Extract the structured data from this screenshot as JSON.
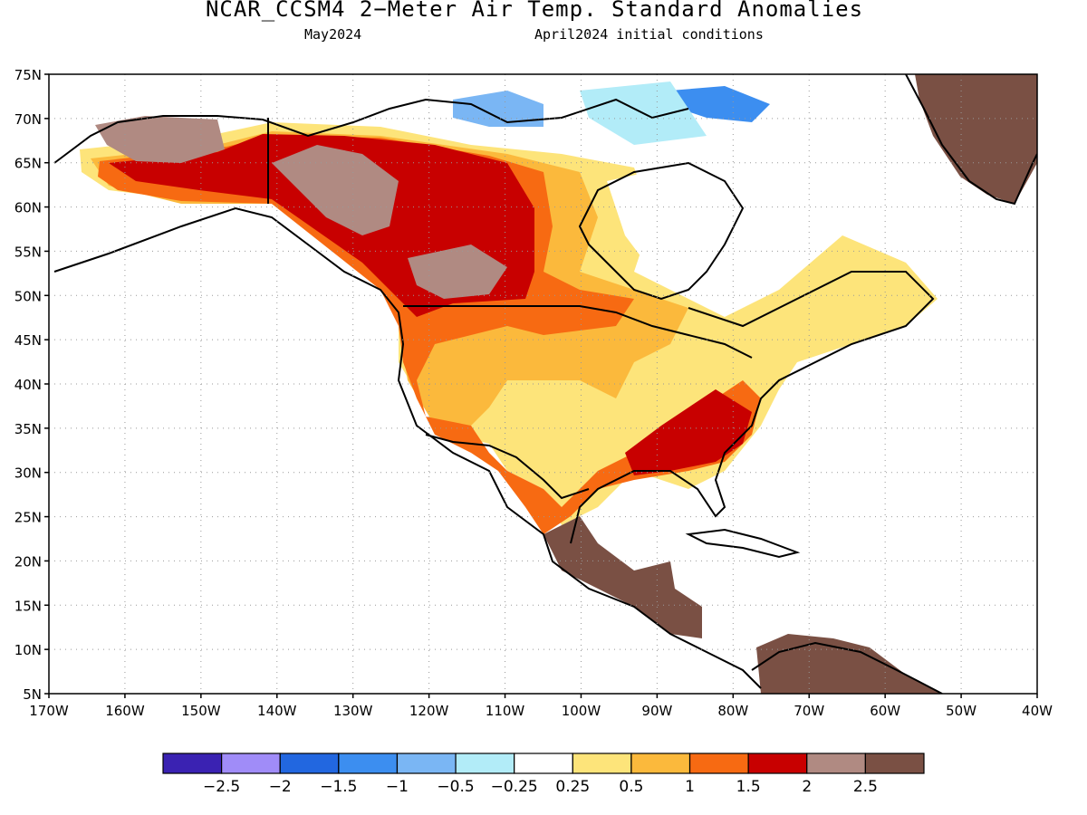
{
  "title": "NCAR_CCSM4 2−Meter Air Temp. Standard Anomalies",
  "subtitle_left": "May2024",
  "subtitle_right": "April2024 initial conditions",
  "lat_labels": [
    "75N",
    "70N",
    "65N",
    "60N",
    "55N",
    "50N",
    "45N",
    "40N",
    "35N",
    "30N",
    "25N",
    "20N",
    "15N",
    "10N",
    "5N"
  ],
  "lon_labels": [
    "170W",
    "160W",
    "150W",
    "140W",
    "130W",
    "120W",
    "110W",
    "100W",
    "90W",
    "80W",
    "70W",
    "60W",
    "50W",
    "40W"
  ],
  "colorbar": {
    "colors": [
      "#3a22b2",
      "#a08cf8",
      "#2267e0",
      "#3c8ef0",
      "#7ab6f4",
      "#b2ecf8",
      "#ffffff",
      "#fde47a",
      "#fbb93c",
      "#f76a12",
      "#c80000",
      "#b08a82",
      "#7a5044"
    ],
    "labels": [
      "−2.5",
      "−2",
      "−1.5",
      "−1",
      "−0.5",
      "−0.25",
      "0.25",
      "0.5",
      "1",
      "1.5",
      "2",
      "2.5"
    ]
  },
  "colors": {
    "neg_light": "#b2ecf8",
    "neg_mid": "#7ab6f4",
    "neg_strong": "#3c8ef0",
    "pos_light": "#fde47a",
    "pos_mid": "#fbb93c",
    "pos_strong": "#f76a12",
    "pos_vstrong": "#c80000",
    "pos_ext": "#b08a82",
    "pos_max": "#7a5044"
  }
}
